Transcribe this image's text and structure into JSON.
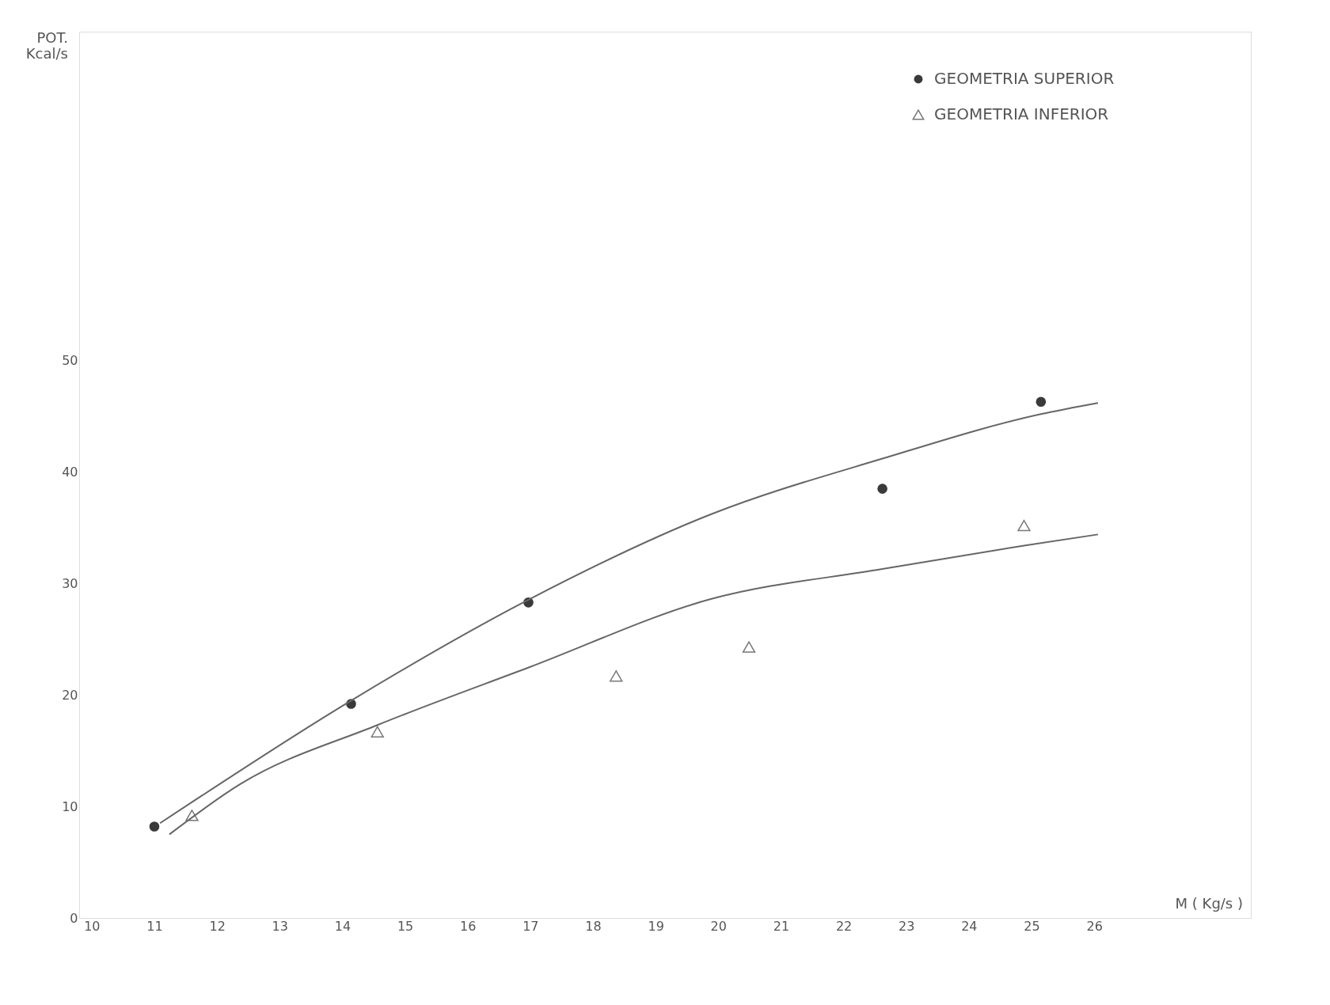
{
  "chart_data": {
    "type": "scatter",
    "xlabel": "M ( Kg/s )",
    "ylabel": "POT. Kcal/s",
    "xlim": [
      9.8,
      28.5
    ],
    "xticks": [
      10,
      11,
      12,
      13,
      14,
      15,
      16,
      17,
      18,
      19,
      20,
      21,
      22,
      23,
      24,
      25,
      26
    ],
    "ylim": [
      0,
      79.5
    ],
    "yticks": [
      0,
      10,
      20,
      30,
      40,
      50
    ],
    "grid": false,
    "legend": "top right",
    "series": [
      {
        "name": "GEOMETRIA SUPERIOR",
        "marker": "circle",
        "color": "#3a3a3a",
        "x": [
          11,
          14.14,
          16.97,
          22.62,
          25.15
        ],
        "values": [
          8.2,
          19.2,
          28.3,
          38.5,
          46.3
        ]
      },
      {
        "name": "GEOMETRIA INFERIOR",
        "marker": "triangle",
        "color": "#777777",
        "x": [
          11.6,
          14.56,
          18.37,
          20.49,
          24.88
        ],
        "values": [
          9.2,
          16.7,
          21.7,
          24.3,
          35.2
        ]
      },
      {
        "type": "line",
        "color": "#666666",
        "x": [
          11.09,
          14.14,
          16.99,
          19.88,
          22.62,
          25.15,
          26.06
        ],
        "values": [
          8.5,
          19.5,
          28.6,
          36.2,
          41.2,
          45.2,
          46.2
        ]
      },
      {
        "type": "line",
        "color": "#666666",
        "x": [
          11.24,
          12.37,
          14.56,
          16.99,
          19.88,
          22.62,
          24.88,
          26.06
        ],
        "values": [
          7.5,
          12.0,
          17.3,
          22.5,
          28.6,
          31.3,
          33.4,
          34.4
        ]
      }
    ]
  }
}
